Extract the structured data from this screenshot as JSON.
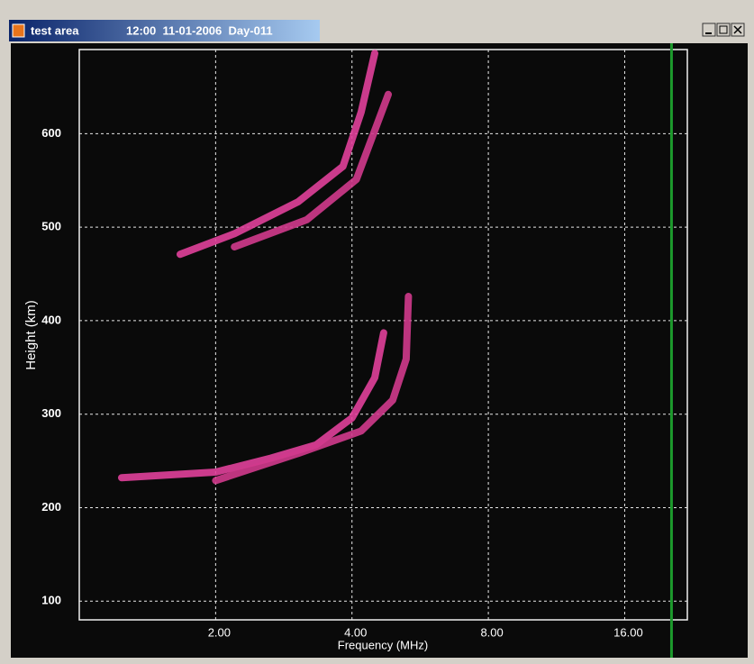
{
  "window": {
    "title": "test area",
    "subtitle": "12:00  11-01-2006  Day-011"
  },
  "chart_data": {
    "type": "line",
    "x_label": "Frequency (MHz)",
    "y_label": "Height (km)",
    "xscale": "log",
    "grid": true,
    "xlim": [
      1,
      22
    ],
    "ylim": [
      80,
      690
    ],
    "xticks": [
      {
        "value": 2,
        "label": "2.00"
      },
      {
        "value": 4,
        "label": "4.00"
      },
      {
        "value": 8,
        "label": "8.00"
      },
      {
        "value": 16,
        "label": "16.00"
      }
    ],
    "yticks": [
      100,
      200,
      300,
      400,
      500,
      600
    ],
    "series": [
      {
        "color": "#e0409a",
        "x": [
          1.24,
          2.0,
          2.65,
          3.33,
          4.0,
          4.49,
          4.7
        ],
        "values": [
          232,
          238,
          253,
          267,
          296,
          339,
          387
        ]
      },
      {
        "color": "#d03a8c",
        "x": [
          2.0,
          3.04,
          4.19,
          4.92,
          5.27,
          5.33
        ],
        "values": [
          229,
          258,
          282,
          315,
          359,
          426
        ]
      },
      {
        "color": "#e0409a",
        "x": [
          1.67,
          2.2,
          3.04,
          3.82,
          4.19,
          4.49
        ],
        "values": [
          471,
          493,
          527,
          565,
          623,
          686
        ]
      },
      {
        "color": "#d03a8c",
        "x": [
          2.2,
          3.18,
          4.09,
          4.81
        ],
        "values": [
          479,
          508,
          551,
          642
        ]
      }
    ],
    "markers": [
      {
        "x": 20.3,
        "color": "#1c9a2c"
      }
    ]
  }
}
